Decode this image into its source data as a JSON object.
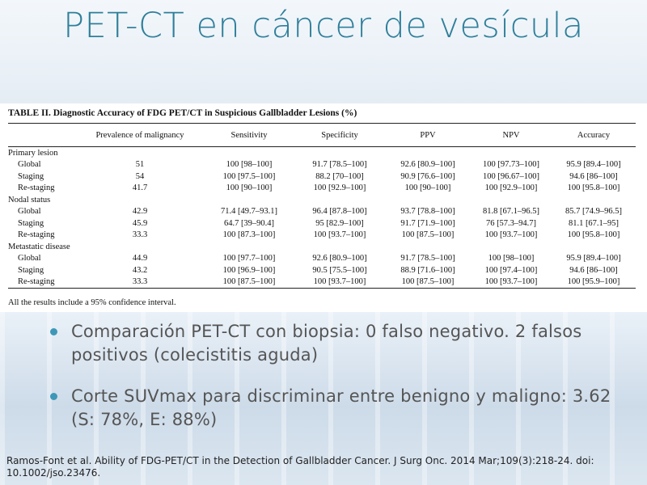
{
  "slide": {
    "title": "PET-CT en cáncer de vesícula",
    "colors": {
      "title": "#2f7f9a",
      "bullet": "#3d98b8",
      "body_text": "#555555"
    }
  },
  "table": {
    "caption": "TABLE II.  Diagnostic Accuracy of FDG PET/CT in Suspicious Gallbladder Lesions (%)",
    "headers": [
      "",
      "Prevalence of malignancy",
      "Sensitivity",
      "Specificity",
      "PPV",
      "NPV",
      "Accuracy"
    ],
    "rows": [
      {
        "type": "group",
        "label": "Primary lesion"
      },
      {
        "type": "data",
        "cells": [
          "Global",
          "51",
          "100 [98–100]",
          "91.7 [78.5–100]",
          "92.6 [80.9–100]",
          "100 [97.73–100]",
          "95.9 [89.4–100]"
        ]
      },
      {
        "type": "data",
        "cells": [
          "Staging",
          "54",
          "100 [97.5–100]",
          "88.2 [70–100]",
          "90.9 [76.6–100]",
          "100 [96.67–100]",
          "94.6 [86–100]"
        ]
      },
      {
        "type": "data",
        "cells": [
          "Re-staging",
          "41.7",
          "100 [90–100]",
          "100 [92.9–100]",
          "100 [90–100]",
          "100 [92.9–100]",
          "100 [95.8–100]"
        ]
      },
      {
        "type": "group",
        "label": "Nodal status"
      },
      {
        "type": "data",
        "cells": [
          "Global",
          "42.9",
          "71.4 [49.7–93.1]",
          "96.4 [87.8–100]",
          "93.7 [78.8–100]",
          "81.8 [67.1–96.5]",
          "85.7 [74.9–96.5]"
        ]
      },
      {
        "type": "data",
        "cells": [
          "Staging",
          "45.9",
          "64.7 [39–90.4]",
          "95 [82.9–100]",
          "91.7 [71.9–100]",
          "76 [57.3–94.7]",
          "81.1 [67.1–95]"
        ]
      },
      {
        "type": "data",
        "cells": [
          "Re-staging",
          "33.3",
          "100 [87.3–100]",
          "100 [93.7–100]",
          "100 [87.5–100]",
          "100 [93.7–100]",
          "100 [95.8–100]"
        ]
      },
      {
        "type": "group",
        "label": "Metastatic disease"
      },
      {
        "type": "data",
        "cells": [
          "Global",
          "44.9",
          "100 [97.7–100]",
          "92.6 [80.9–100]",
          "91.7 [78.5–100]",
          "100 [98–100]",
          "95.9 [89.4–100]"
        ]
      },
      {
        "type": "data",
        "cells": [
          "Staging",
          "43.2",
          "100 [96.9–100]",
          "90.5 [75.5–100]",
          "88.9 [71.6–100]",
          "100 [97.4–100]",
          "94.6 [86–100]"
        ]
      },
      {
        "type": "data",
        "cells": [
          "Re-staging",
          "33.3",
          "100 [87.5–100]",
          "100 [93.7–100]",
          "100 [87.5–100]",
          "100 [93.7–100]",
          "100 [95.9–100]"
        ]
      }
    ],
    "footnote": "All the results include a 95% confidence interval."
  },
  "bullets": [
    {
      "text": "Comparación PET-CT con biopsia: 0 falso negativo. 2 falsos positivos (colecistitis aguda)"
    },
    {
      "text": "Corte SUVmax para discriminar entre benigno y maligno: 3.62 (S: 78%, E: 88%)"
    }
  ],
  "reference": "Ramos-Font et al.  Ability of  FDG-PET/CT in the Detection of  Gallbladder Cancer. J Surg Onc. 2014 Mar;109(3):218-24.  doi: 10.1002/jso.23476."
}
